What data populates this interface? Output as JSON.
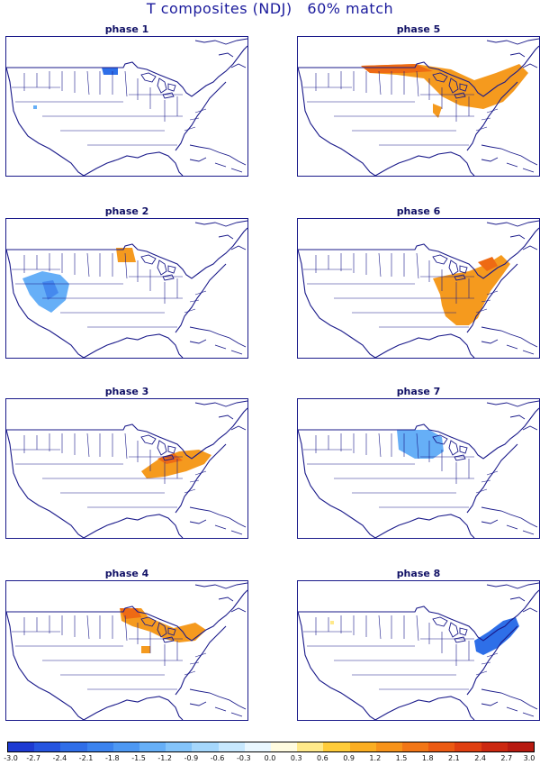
{
  "title": "T composites (NDJ)   60% match",
  "panels": [
    {
      "label": "phase 1"
    },
    {
      "label": "phase 5"
    },
    {
      "label": "phase 2"
    },
    {
      "label": "phase 6"
    },
    {
      "label": "phase 3"
    },
    {
      "label": "phase 7"
    },
    {
      "label": "phase 4"
    },
    {
      "label": "phase 8"
    }
  ],
  "colorbar": {
    "ticks": [
      "-3.0",
      "-2.7",
      "-2.4",
      "-2.1",
      "-1.8",
      "-1.5",
      "-1.2",
      "-0.9",
      "-0.6",
      "-0.3",
      "0.0",
      "0.3",
      "0.6",
      "0.9",
      "1.2",
      "1.5",
      "1.8",
      "2.1",
      "2.4",
      "2.7",
      "3.0"
    ],
    "colors": [
      "#1d3ad2",
      "#2554e0",
      "#2f6ee8",
      "#3b83ef",
      "#4d98f3",
      "#66aff7",
      "#84c4fa",
      "#a5d7fc",
      "#c7e8fe",
      "#e9f7ff",
      "#fffbe0",
      "#ffe98a",
      "#ffcc3a",
      "#fbae22",
      "#f7931a",
      "#f27616",
      "#ec5a12",
      "#e03f10",
      "#cc2810",
      "#b81a10"
    ]
  },
  "colors": {
    "title": "#1a1a9c",
    "map_lines": "#1a1a8a",
    "warm": "#f59a1e",
    "warm_strong": "#ee6a14",
    "cool": "#66aff7",
    "cool_strong": "#2e6fe8"
  }
}
